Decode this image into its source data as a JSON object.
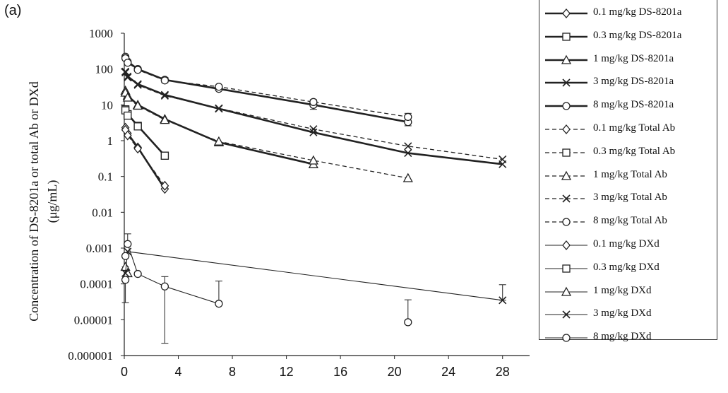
{
  "panel_label": "(a)",
  "chart_data": {
    "type": "line",
    "xlabel": "",
    "ylabel": [
      "Concentration of DS-8201a or total Ab or DXd",
      "(μg/mL)"
    ],
    "xlim": [
      0,
      30
    ],
    "ylim": [
      1e-06,
      1000
    ],
    "y_scale": "log",
    "x_ticks": [
      0,
      4,
      8,
      12,
      16,
      20,
      24,
      28
    ],
    "y_ticks": [
      {
        "value": 1000,
        "label": "1000"
      },
      {
        "value": 100,
        "label": "100"
      },
      {
        "value": 10,
        "label": "10"
      },
      {
        "value": 1,
        "label": "1"
      },
      {
        "value": 0.1,
        "label": "0.1"
      },
      {
        "value": 0.01,
        "label": "0.01"
      },
      {
        "value": 0.001,
        "label": "0.001"
      },
      {
        "value": 0.0001,
        "label": "0.0001"
      },
      {
        "value": 1e-05,
        "label": "0.00001"
      },
      {
        "value": 1e-06,
        "label": "0.000001"
      }
    ],
    "grid": false,
    "legend_position": "right",
    "series": [
      {
        "name": "0.1 mg/kg DS-8201a",
        "style": "solid-bold",
        "marker": "diamond",
        "x": [
          0.0833,
          0.25,
          1,
          3
        ],
        "y": [
          2.3,
          1.6,
          0.65,
          0.045
        ]
      },
      {
        "name": "0.3 mg/kg DS-8201a",
        "style": "solid-bold",
        "marker": "square",
        "x": [
          0.0833,
          0.25,
          1,
          3
        ],
        "y": [
          7.5,
          5.5,
          2.6,
          0.38
        ]
      },
      {
        "name": "1 mg/kg DS-8201a",
        "style": "solid-bold",
        "marker": "triangle",
        "x": [
          0.0833,
          0.25,
          1,
          3,
          7,
          14,
          21
        ],
        "y": [
          25,
          18,
          10,
          4,
          0.9,
          0.22,
          null
        ]
      },
      {
        "name": "3 mg/kg DS-8201a",
        "style": "solid-bold",
        "marker": "x",
        "x": [
          0.0833,
          0.25,
          1,
          3,
          7,
          14,
          21,
          28
        ],
        "y": [
          85,
          62,
          38,
          19,
          7.8,
          1.7,
          0.45,
          0.22
        ]
      },
      {
        "name": "8 mg/kg DS-8201a",
        "style": "solid-bold",
        "marker": "circle",
        "x": [
          0.0833,
          0.25,
          1,
          3,
          7,
          14,
          21
        ],
        "y": [
          220,
          160,
          100,
          50,
          28,
          10,
          3.3
        ]
      },
      {
        "name": "0.1 mg/kg Total Ab",
        "style": "dashed",
        "marker": "diamond",
        "x": [
          0.0833,
          0.25,
          1,
          3
        ],
        "y": [
          2.0,
          1.4,
          0.6,
          0.055
        ]
      },
      {
        "name": "0.3 mg/kg Total Ab",
        "style": "dashed",
        "marker": "square",
        "x": [
          0.0833,
          0.25,
          1,
          3
        ],
        "y": [
          7.0,
          5.0,
          2.5,
          0.38
        ]
      },
      {
        "name": "1 mg/kg Total Ab",
        "style": "dashed",
        "marker": "triangle",
        "x": [
          0.0833,
          0.25,
          1,
          3,
          7,
          14,
          21
        ],
        "y": [
          22,
          16,
          9.5,
          3.8,
          0.95,
          0.28,
          0.09
        ]
      },
      {
        "name": "3 mg/kg Total Ab",
        "style": "dashed",
        "marker": "x",
        "x": [
          0.0833,
          0.25,
          1,
          3,
          7,
          14,
          21,
          28
        ],
        "y": [
          80,
          58,
          36,
          18,
          8,
          2.1,
          0.7,
          0.3
        ]
      },
      {
        "name": "8 mg/kg Total Ab",
        "style": "dashed",
        "marker": "circle",
        "x": [
          0.0833,
          0.25,
          1,
          3,
          7,
          14,
          21
        ],
        "y": [
          200,
          150,
          95,
          48,
          32,
          12,
          4.6
        ]
      },
      {
        "name": "0.1 mg/kg DXd",
        "style": "solid-thin",
        "marker": "diamond",
        "x": [],
        "y": []
      },
      {
        "name": "0.3 mg/kg DXd",
        "style": "solid-thin",
        "marker": "square",
        "x": [],
        "y": []
      },
      {
        "name": "1 mg/kg DXd",
        "style": "solid-thin",
        "marker": "triangle",
        "x": [
          0.0833,
          0.25
        ],
        "y": [
          0.0003,
          0.0002
        ]
      },
      {
        "name": "3 mg/kg DXd",
        "style": "solid-thin",
        "marker": "x",
        "x": [
          0.0833,
          0.25,
          28
        ],
        "y": [
          0.0002,
          0.0008,
          3.5e-05
        ]
      },
      {
        "name": "8 mg/kg DXd",
        "style": "solid-thin",
        "marker": "circle",
        "x": [
          0.0833,
          0.0833,
          0.25,
          1,
          3,
          7,
          21
        ],
        "y": [
          0.00013,
          0.0006,
          0.0013,
          0.00019,
          8.5e-05,
          2.8e-05,
          8.5e-06
        ],
        "line_x": [
          0.25,
          1,
          3,
          7
        ],
        "line_y": [
          0.0013,
          0.00019,
          8.5e-05,
          2.8e-05
        ]
      }
    ],
    "error_bars": [
      {
        "x": 0.0833,
        "y_low": 3e-05,
        "y_high": 0.0003
      },
      {
        "x": 0.25,
        "y_low": 0.0013,
        "y_high": 0.0025
      },
      {
        "x": 3,
        "y_low": 2.2e-06,
        "y_high": 0.00016
      },
      {
        "x": 7,
        "y_low": 2.8e-05,
        "y_high": 0.00012
      },
      {
        "x": 21,
        "y_low": 8.5e-06,
        "y_high": 3.6e-05
      },
      {
        "x": 28,
        "y_low": 3.5e-05,
        "y_high": 9.5e-05
      },
      {
        "x": 3,
        "y_low": 42,
        "y_high": 58
      },
      {
        "x": 14,
        "y_low": 7.5,
        "y_high": 14
      },
      {
        "x": 21,
        "y_low": 2.6,
        "y_high": 5.8
      }
    ]
  }
}
